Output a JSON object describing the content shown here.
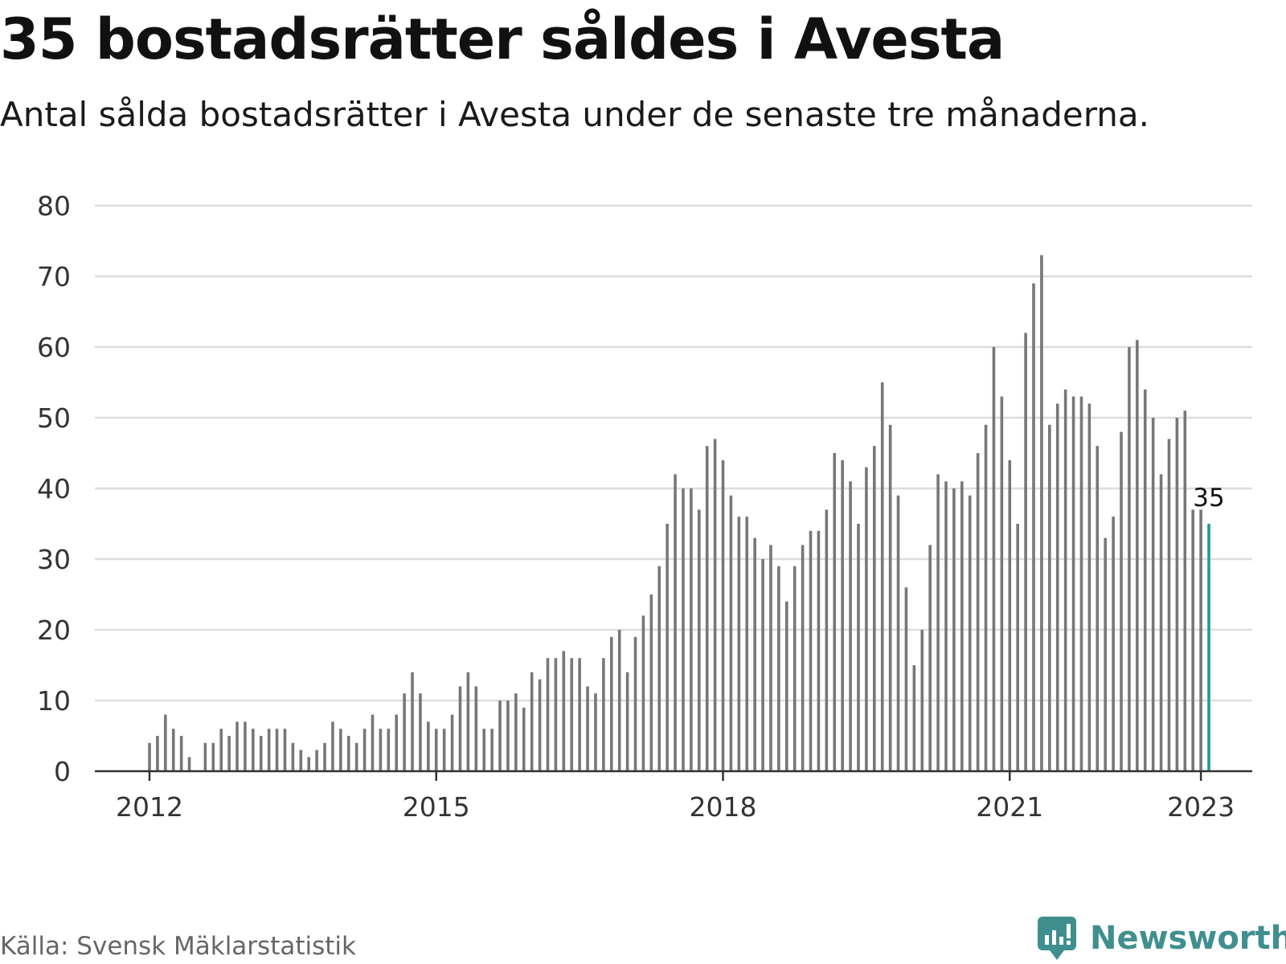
{
  "title": "35 bostadsrätter såldes i Avesta",
  "subtitle": "Antal sålda bostadsrätter i Avesta under de senaste tre månaderna.",
  "source": "Källa: Svensk Mäklarstatistik",
  "brand": {
    "name": "Newsworthy",
    "icon": "newsworthy-logo-icon",
    "color": "#3f8f8f"
  },
  "colors": {
    "bar": "#777777",
    "highlight": "#1a9e96",
    "grid": "#dddddd",
    "axis": "#333333"
  },
  "chart_data": {
    "type": "bar",
    "title": "35 bostadsrätter såldes i Avesta",
    "subtitle": "Antal sålda bostadsrätter i Avesta under de senaste tre månaderna.",
    "xlabel": "",
    "ylabel": "",
    "ylim": [
      0,
      80
    ],
    "yticks": [
      0,
      10,
      20,
      30,
      40,
      50,
      60,
      70,
      80
    ],
    "xticks": [
      {
        "label": "2012",
        "date": "2012-01"
      },
      {
        "label": "2015",
        "date": "2015-01"
      },
      {
        "label": "2018",
        "date": "2018-01"
      },
      {
        "label": "2021",
        "date": "2021-01"
      },
      {
        "label": "2023",
        "date": "2023-01"
      }
    ],
    "grid": true,
    "legend": "none",
    "x_start": "2012-01",
    "x_end": "2023-01",
    "highlight_last": true,
    "last_value_label": "35",
    "values": [
      4,
      5,
      8,
      6,
      5,
      2,
      0,
      4,
      4,
      6,
      5,
      7,
      7,
      6,
      5,
      6,
      6,
      6,
      4,
      3,
      2,
      3,
      4,
      7,
      6,
      5,
      4,
      6,
      8,
      6,
      6,
      8,
      11,
      14,
      11,
      7,
      6,
      6,
      8,
      12,
      14,
      12,
      6,
      6,
      10,
      10,
      11,
      9,
      14,
      13,
      16,
      16,
      17,
      16,
      16,
      12,
      11,
      16,
      19,
      20,
      14,
      19,
      22,
      25,
      29,
      35,
      42,
      40,
      40,
      37,
      46,
      47,
      44,
      39,
      36,
      36,
      33,
      30,
      32,
      29,
      24,
      29,
      32,
      34,
      34,
      37,
      45,
      44,
      41,
      35,
      43,
      46,
      55,
      49,
      39,
      26,
      15,
      20,
      32,
      42,
      41,
      40,
      41,
      39,
      45,
      49,
      60,
      53,
      44,
      35,
      62,
      69,
      73,
      49,
      52,
      54,
      53,
      53,
      52,
      46,
      33,
      36,
      48,
      60,
      61,
      54,
      50,
      42,
      47,
      50,
      51,
      37,
      37,
      35
    ]
  }
}
